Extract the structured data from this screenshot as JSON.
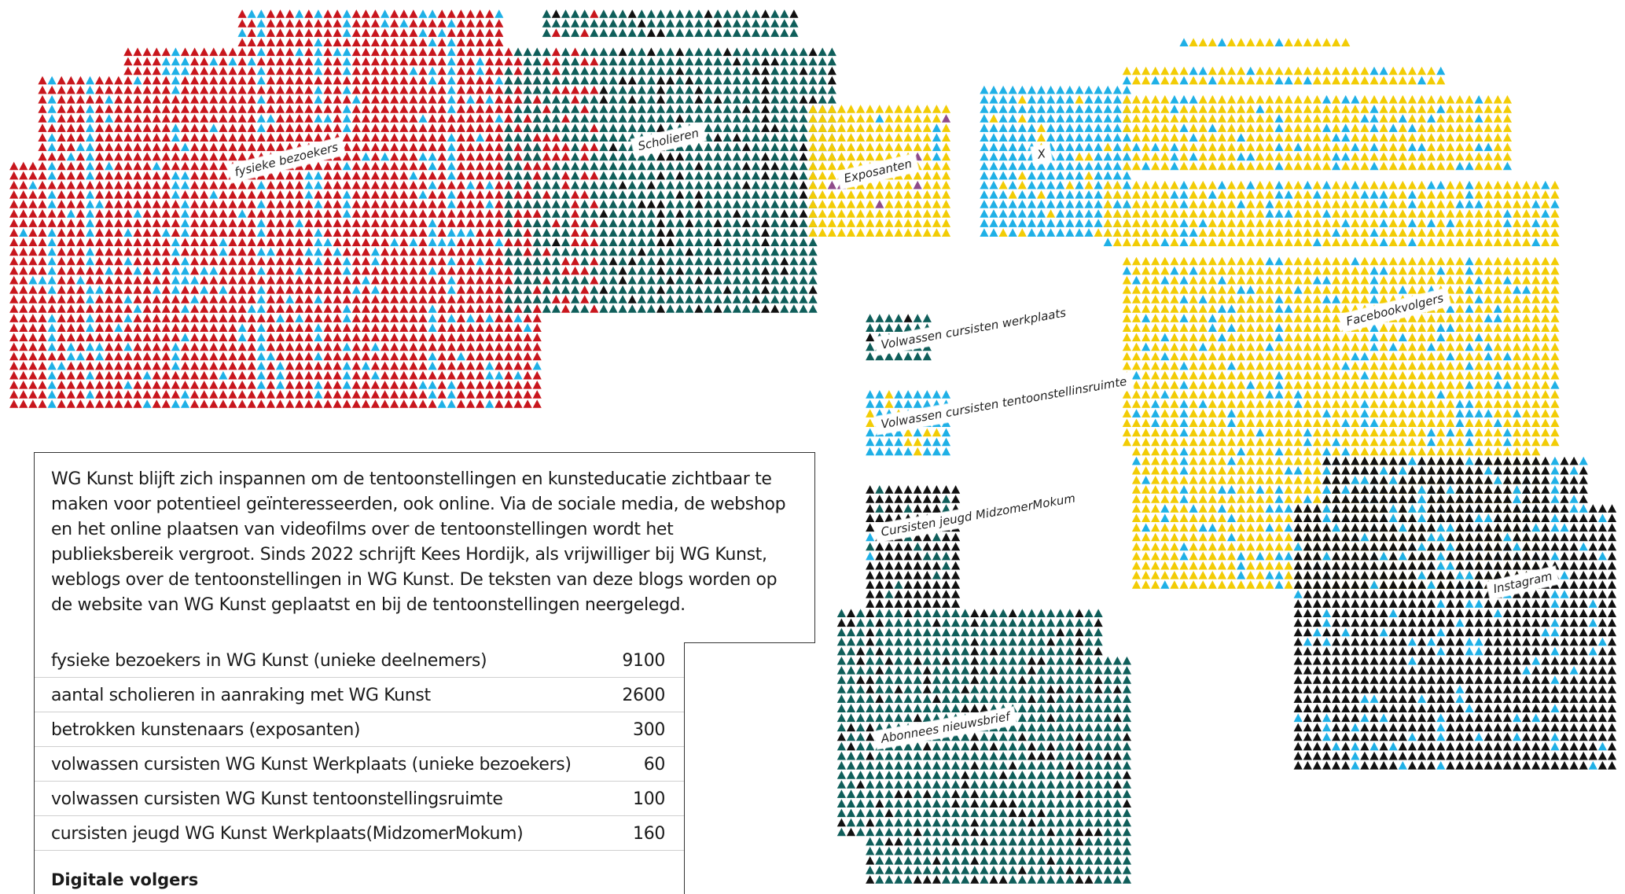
{
  "colors": {
    "red": "#c8161d",
    "teal": "#0f5e5a",
    "yellow": "#f2cc05",
    "cyan": "#1fb0e6",
    "black": "#111111",
    "purple": "#8e4b8a"
  },
  "story": "WG Kunst blijft zich inspannen om de tentoonstellingen en kunsteducatie zichtbaar te maken voor potentieel geïnteresseerden, ook online. Via de sociale media, de webshop en het online plaatsen van videofilms over de tentoonstellingen wordt het publieksbereik vergroot. Sinds 2022 schrijft Kees Hordijk, als vrijwilliger bij WG Kunst, weblogs over de tentoonstellingen in WG Kunst. De teksten van deze blogs worden op de website van WG Kunst geplaatst en bij de tentoonstellingen neergelegd.",
  "stats": [
    {
      "label": "fysieke bezoekers in WG Kunst (unieke deelnemers)",
      "value": "9100"
    },
    {
      "label": "aantal scholieren in aanraking met WG Kunst",
      "value": "2600"
    },
    {
      "label": "betrokken kunstenaars (exposanten)",
      "value": "300"
    },
    {
      "label": "volwassen cursisten WG Kunst Werkplaats (unieke bezoekers)",
      "value": "60"
    },
    {
      "label": "volwassen cursisten WG Kunst tentoonstellingsruimte",
      "value": "100"
    },
    {
      "label": "cursisten jeugd WG Kunst Werkplaats(MidzomerMokum)",
      "value": "160"
    }
  ],
  "digital_heading": "Digitale volgers",
  "chart_data": {
    "type": "pictogram",
    "marker": "triangle",
    "series": [
      {
        "name": "fysieke bezoekers",
        "color": "red",
        "accent": "cyan",
        "value": 9100
      },
      {
        "name": "Scholieren",
        "color": "teal",
        "accent": "black",
        "value": 2600
      },
      {
        "name": "Exposanten",
        "color": "yellow",
        "accent": "purple",
        "value": 300
      },
      {
        "name": "X",
        "color": "cyan",
        "accent": "yellow"
      },
      {
        "name": "Facebookvolgers",
        "color": "yellow",
        "accent": "cyan"
      },
      {
        "name": "Volwassen cursisten werkplaats",
        "color": "teal",
        "accent": "black",
        "value": 60
      },
      {
        "name": "Volwassen cursisten tentoonstellinsruimte",
        "color": "cyan",
        "accent": "yellow",
        "value": 100
      },
      {
        "name": "Cursisten jeugd MidzomerMokum",
        "color": "black",
        "accent": "teal",
        "value": 160
      },
      {
        "name": "Abonnees nieuwsbrief",
        "color": "teal",
        "accent": "black"
      },
      {
        "name": "Instagram",
        "color": "black",
        "accent": "cyan"
      }
    ]
  }
}
